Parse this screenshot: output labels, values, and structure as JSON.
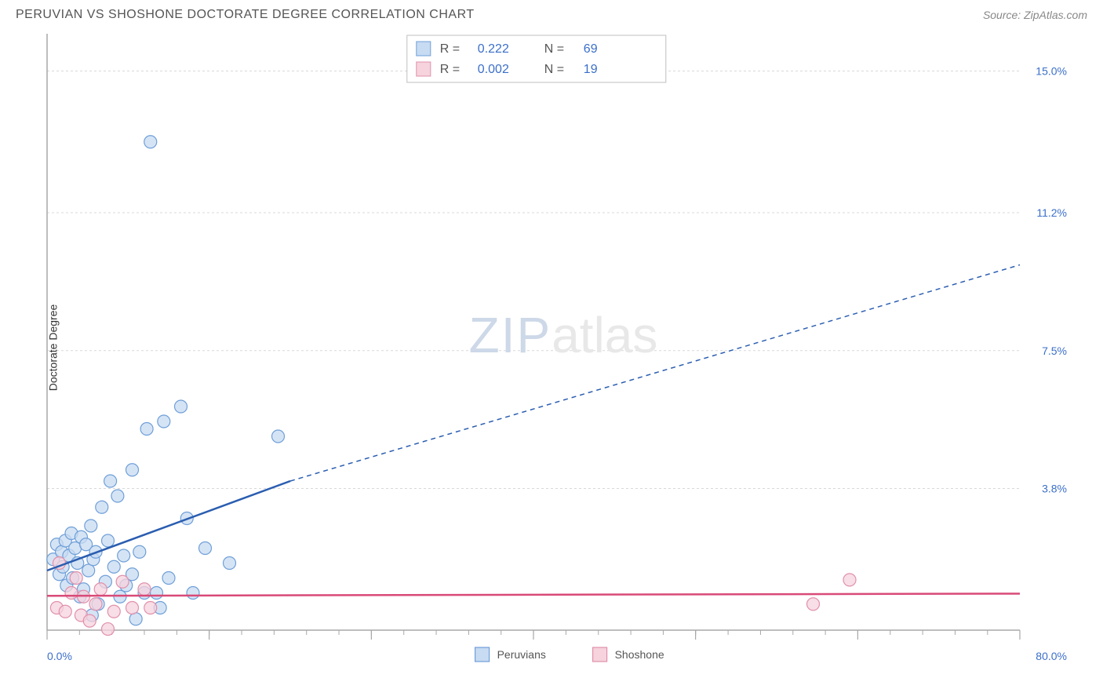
{
  "header": {
    "title": "PERUVIAN VS SHOSHONE DOCTORATE DEGREE CORRELATION CHART",
    "source": "Source: ZipAtlas.com"
  },
  "chart": {
    "type": "scatter",
    "ylabel": "Doctorate Degree",
    "background_color": "#ffffff",
    "grid_color": "#d8d8d8",
    "axis_color": "#a8a8a8",
    "tick_color": "#a8a8a8",
    "xlim": [
      0,
      80
    ],
    "ylim": [
      0,
      16
    ],
    "xticks_major": [
      0,
      13.33,
      26.67,
      40,
      53.33,
      66.67,
      80
    ],
    "xticks_minor_step": 2.667,
    "yticks": [
      0,
      3.8,
      7.5,
      11.2,
      15.0
    ],
    "ytick_labels": [
      "",
      "3.8%",
      "7.5%",
      "11.2%",
      "15.0%"
    ],
    "x_start_label": "0.0%",
    "x_end_label": "80.0%",
    "x_label_color": "#3b6fc9",
    "y_label_color": "#3b6fc9",
    "label_fontsize": 14,
    "point_radius": 8,
    "point_stroke_width": 1.2,
    "series": [
      {
        "name": "Peruvians",
        "fill": "#c7dbf2",
        "stroke": "#6f9fd8",
        "line_color": "#2a5db0",
        "line_width": 2.5,
        "trend_solid": [
          [
            0,
            1.6
          ],
          [
            20,
            4.0
          ]
        ],
        "trend_dashed": [
          [
            20,
            4.0
          ],
          [
            80,
            9.8
          ]
        ],
        "R": "0.222",
        "N": "69",
        "points": [
          [
            0.5,
            1.9
          ],
          [
            0.8,
            2.3
          ],
          [
            1.0,
            1.5
          ],
          [
            1.2,
            2.1
          ],
          [
            1.3,
            1.7
          ],
          [
            1.5,
            2.4
          ],
          [
            1.6,
            1.2
          ],
          [
            1.8,
            2.0
          ],
          [
            2.0,
            2.6
          ],
          [
            2.1,
            1.4
          ],
          [
            2.3,
            2.2
          ],
          [
            2.5,
            1.8
          ],
          [
            2.7,
            0.9
          ],
          [
            2.8,
            2.5
          ],
          [
            3.0,
            1.1
          ],
          [
            3.2,
            2.3
          ],
          [
            3.4,
            1.6
          ],
          [
            3.6,
            2.8
          ],
          [
            3.7,
            0.4
          ],
          [
            3.8,
            1.9
          ],
          [
            4.0,
            2.1
          ],
          [
            4.2,
            0.7
          ],
          [
            4.5,
            3.3
          ],
          [
            4.8,
            1.3
          ],
          [
            5.0,
            2.4
          ],
          [
            5.2,
            4.0
          ],
          [
            5.5,
            1.7
          ],
          [
            5.8,
            3.6
          ],
          [
            6.0,
            0.9
          ],
          [
            6.3,
            2.0
          ],
          [
            6.5,
            1.2
          ],
          [
            7.0,
            4.3
          ],
          [
            7.0,
            1.5
          ],
          [
            7.3,
            0.3
          ],
          [
            7.6,
            2.1
          ],
          [
            8.0,
            1.0
          ],
          [
            8.2,
            5.4
          ],
          [
            8.5,
            13.1
          ],
          [
            9.0,
            1.0
          ],
          [
            9.3,
            0.6
          ],
          [
            9.6,
            5.6
          ],
          [
            10.0,
            1.4
          ],
          [
            11.0,
            6.0
          ],
          [
            11.5,
            3.0
          ],
          [
            12.0,
            1.0
          ],
          [
            13.0,
            2.2
          ],
          [
            15.0,
            1.8
          ],
          [
            19.0,
            5.2
          ]
        ]
      },
      {
        "name": "Shoshone",
        "fill": "#f6d3dd",
        "stroke": "#e190ab",
        "line_color": "#d94a78",
        "line_width": 2.5,
        "trend_solid": [
          [
            0,
            0.92
          ],
          [
            80,
            0.98
          ]
        ],
        "trend_dashed": null,
        "R": "0.002",
        "N": "19",
        "points": [
          [
            0.8,
            0.6
          ],
          [
            1.0,
            1.8
          ],
          [
            1.5,
            0.5
          ],
          [
            2.0,
            1.0
          ],
          [
            2.4,
            1.4
          ],
          [
            2.8,
            0.4
          ],
          [
            3.0,
            0.9
          ],
          [
            3.5,
            0.25
          ],
          [
            4.0,
            0.7
          ],
          [
            4.4,
            1.1
          ],
          [
            5.0,
            0.03
          ],
          [
            5.5,
            0.5
          ],
          [
            6.2,
            1.3
          ],
          [
            7.0,
            0.6
          ],
          [
            8.0,
            1.1
          ],
          [
            8.5,
            0.6
          ],
          [
            63.0,
            0.7
          ],
          [
            66.0,
            1.35
          ]
        ]
      }
    ],
    "legend_box": {
      "series1_label_r": "R =",
      "series1_label_n": "N =",
      "series2_label_r": "R =",
      "series2_label_n": "N =",
      "border_color": "#bfbfbf",
      "r_label_color": "#555",
      "value_color": "#3b6fc9",
      "fontsize": 16
    },
    "bottom_legend": {
      "series1": "Peruvians",
      "series2": "Shoshone",
      "text_color": "#555",
      "fontsize": 14
    },
    "watermark": {
      "zip": "ZIP",
      "atlas": "atlas"
    }
  }
}
